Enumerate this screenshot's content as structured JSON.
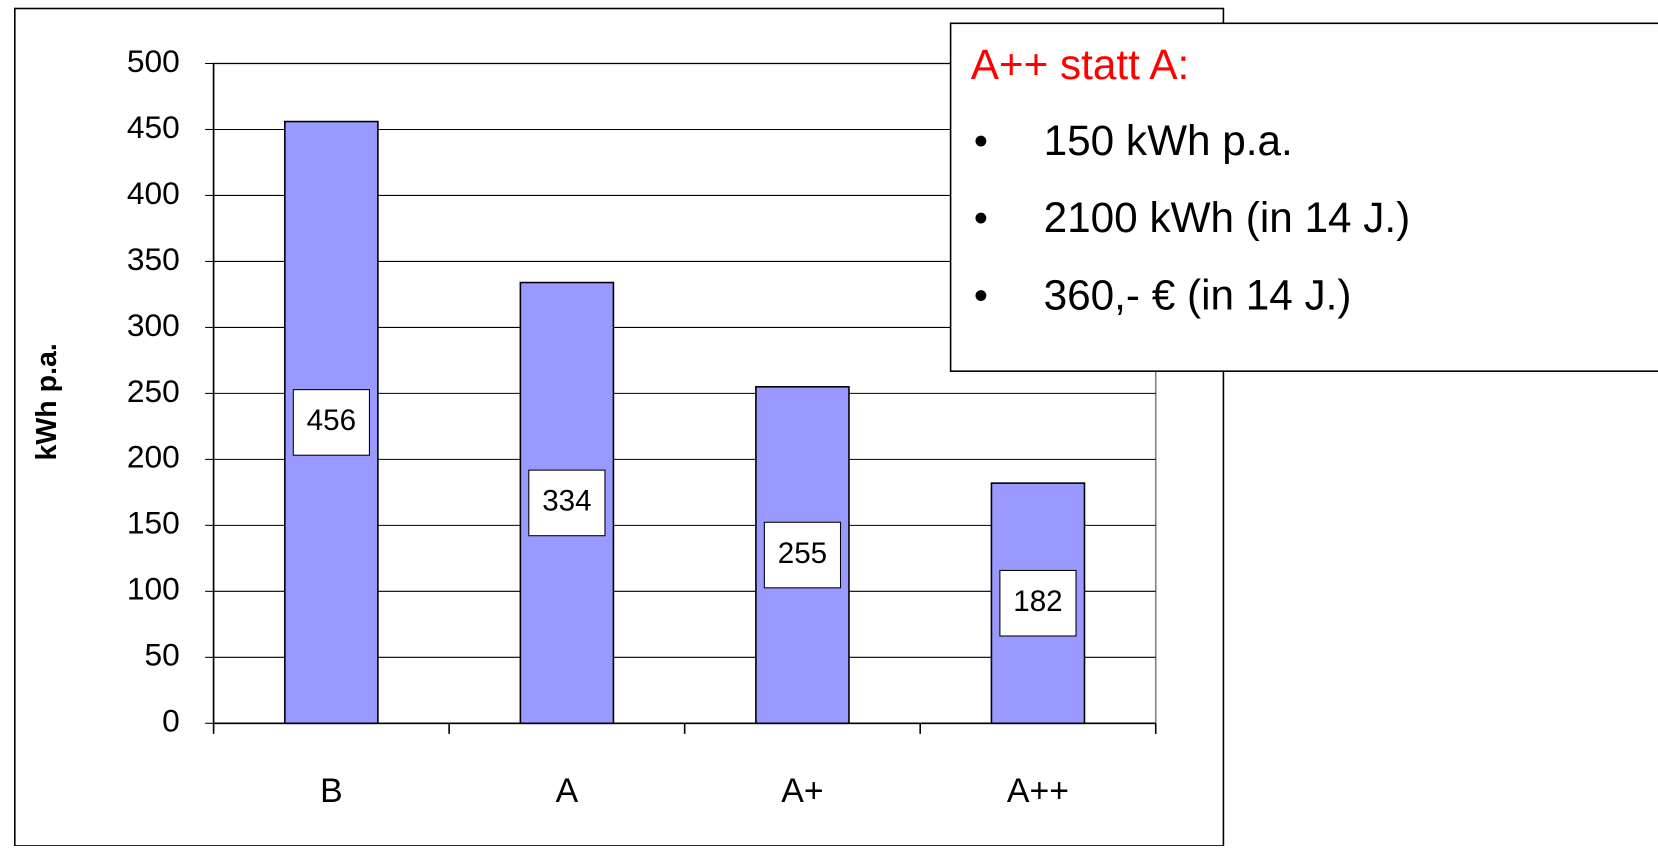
{
  "chart_data": {
    "type": "bar",
    "y_label": "kWh p.a.",
    "categories": [
      "B",
      "A",
      "A+",
      "A++"
    ],
    "values": [
      456,
      334,
      255,
      182
    ],
    "color": "#9999ff",
    "ylim": [
      0,
      500
    ],
    "yticks": [
      0,
      50,
      100,
      150,
      200,
      250,
      300,
      350,
      400,
      450,
      500
    ],
    "grid": true,
    "annotation": {
      "title": "A++ statt A:",
      "items": [
        "150 kWh p.a.",
        "2100 kWh (in 14 J.)",
        "360,- € (in 14 J.)"
      ]
    }
  }
}
